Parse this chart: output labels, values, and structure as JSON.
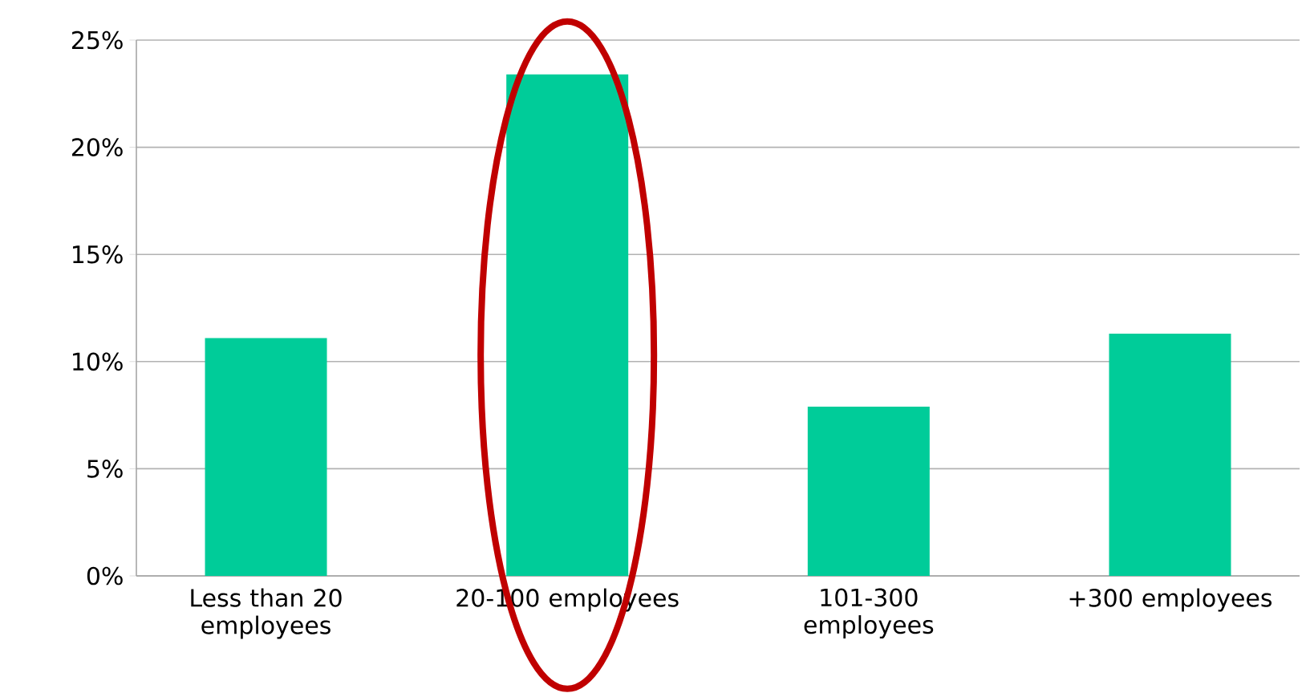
{
  "chart_data": {
    "type": "bar",
    "categories": [
      "Less than 20 employees",
      "20-100 employees",
      "101-300 employees",
      "+300 employees"
    ],
    "values": [
      11.1,
      23.4,
      7.9,
      11.3
    ],
    "color": "#00cc99",
    "ylim": [
      0,
      25
    ],
    "yticks": [
      {
        "value": 0,
        "label": "0%"
      },
      {
        "value": 5,
        "label": "5%"
      },
      {
        "value": 10,
        "label": "10%"
      },
      {
        "value": 15,
        "label": "15%"
      },
      {
        "value": 20,
        "label": "20%"
      },
      {
        "value": 25,
        "label": "25%"
      }
    ],
    "grid": "y"
  }
}
